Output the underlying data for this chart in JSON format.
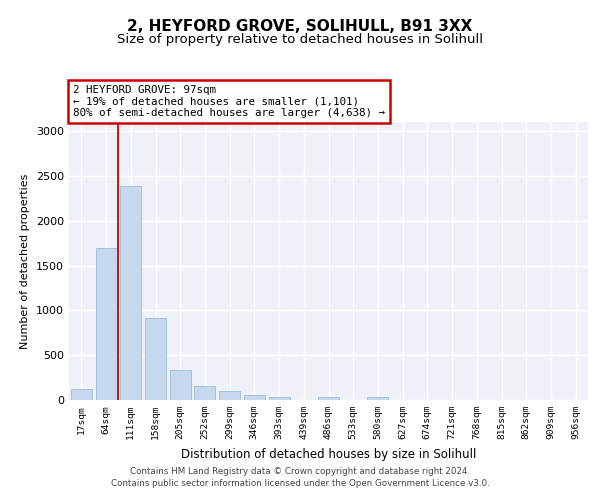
{
  "title1": "2, HEYFORD GROVE, SOLIHULL, B91 3XX",
  "title2": "Size of property relative to detached houses in Solihull",
  "xlabel": "Distribution of detached houses by size in Solihull",
  "ylabel": "Number of detached properties",
  "categories": [
    "17sqm",
    "64sqm",
    "111sqm",
    "158sqm",
    "205sqm",
    "252sqm",
    "299sqm",
    "346sqm",
    "393sqm",
    "439sqm",
    "486sqm",
    "533sqm",
    "580sqm",
    "627sqm",
    "674sqm",
    "721sqm",
    "768sqm",
    "815sqm",
    "862sqm",
    "909sqm",
    "956sqm"
  ],
  "values": [
    120,
    1700,
    2390,
    920,
    340,
    155,
    100,
    60,
    35,
    0,
    35,
    0,
    30,
    0,
    0,
    0,
    0,
    0,
    0,
    0,
    0
  ],
  "bar_color": "#c5d8ed",
  "bar_edge_color": "#9bbcd8",
  "annotation_box_text": "2 HEYFORD GROVE: 97sqm\n← 19% of detached houses are smaller (1,101)\n80% of semi-detached houses are larger (4,638) →",
  "annotation_box_color": "#cc0000",
  "vline_x": 1.5,
  "vline_color": "#cc0000",
  "footer1": "Contains HM Land Registry data © Crown copyright and database right 2024.",
  "footer2": "Contains public sector information licensed under the Open Government Licence v3.0.",
  "ylim": [
    0,
    3100
  ],
  "yticks": [
    0,
    500,
    1000,
    1500,
    2000,
    2500,
    3000
  ],
  "plot_bg": "#eef2f8",
  "grid_color": "#ffffff",
  "title_fontsize": 11,
  "subtitle_fontsize": 9.5
}
